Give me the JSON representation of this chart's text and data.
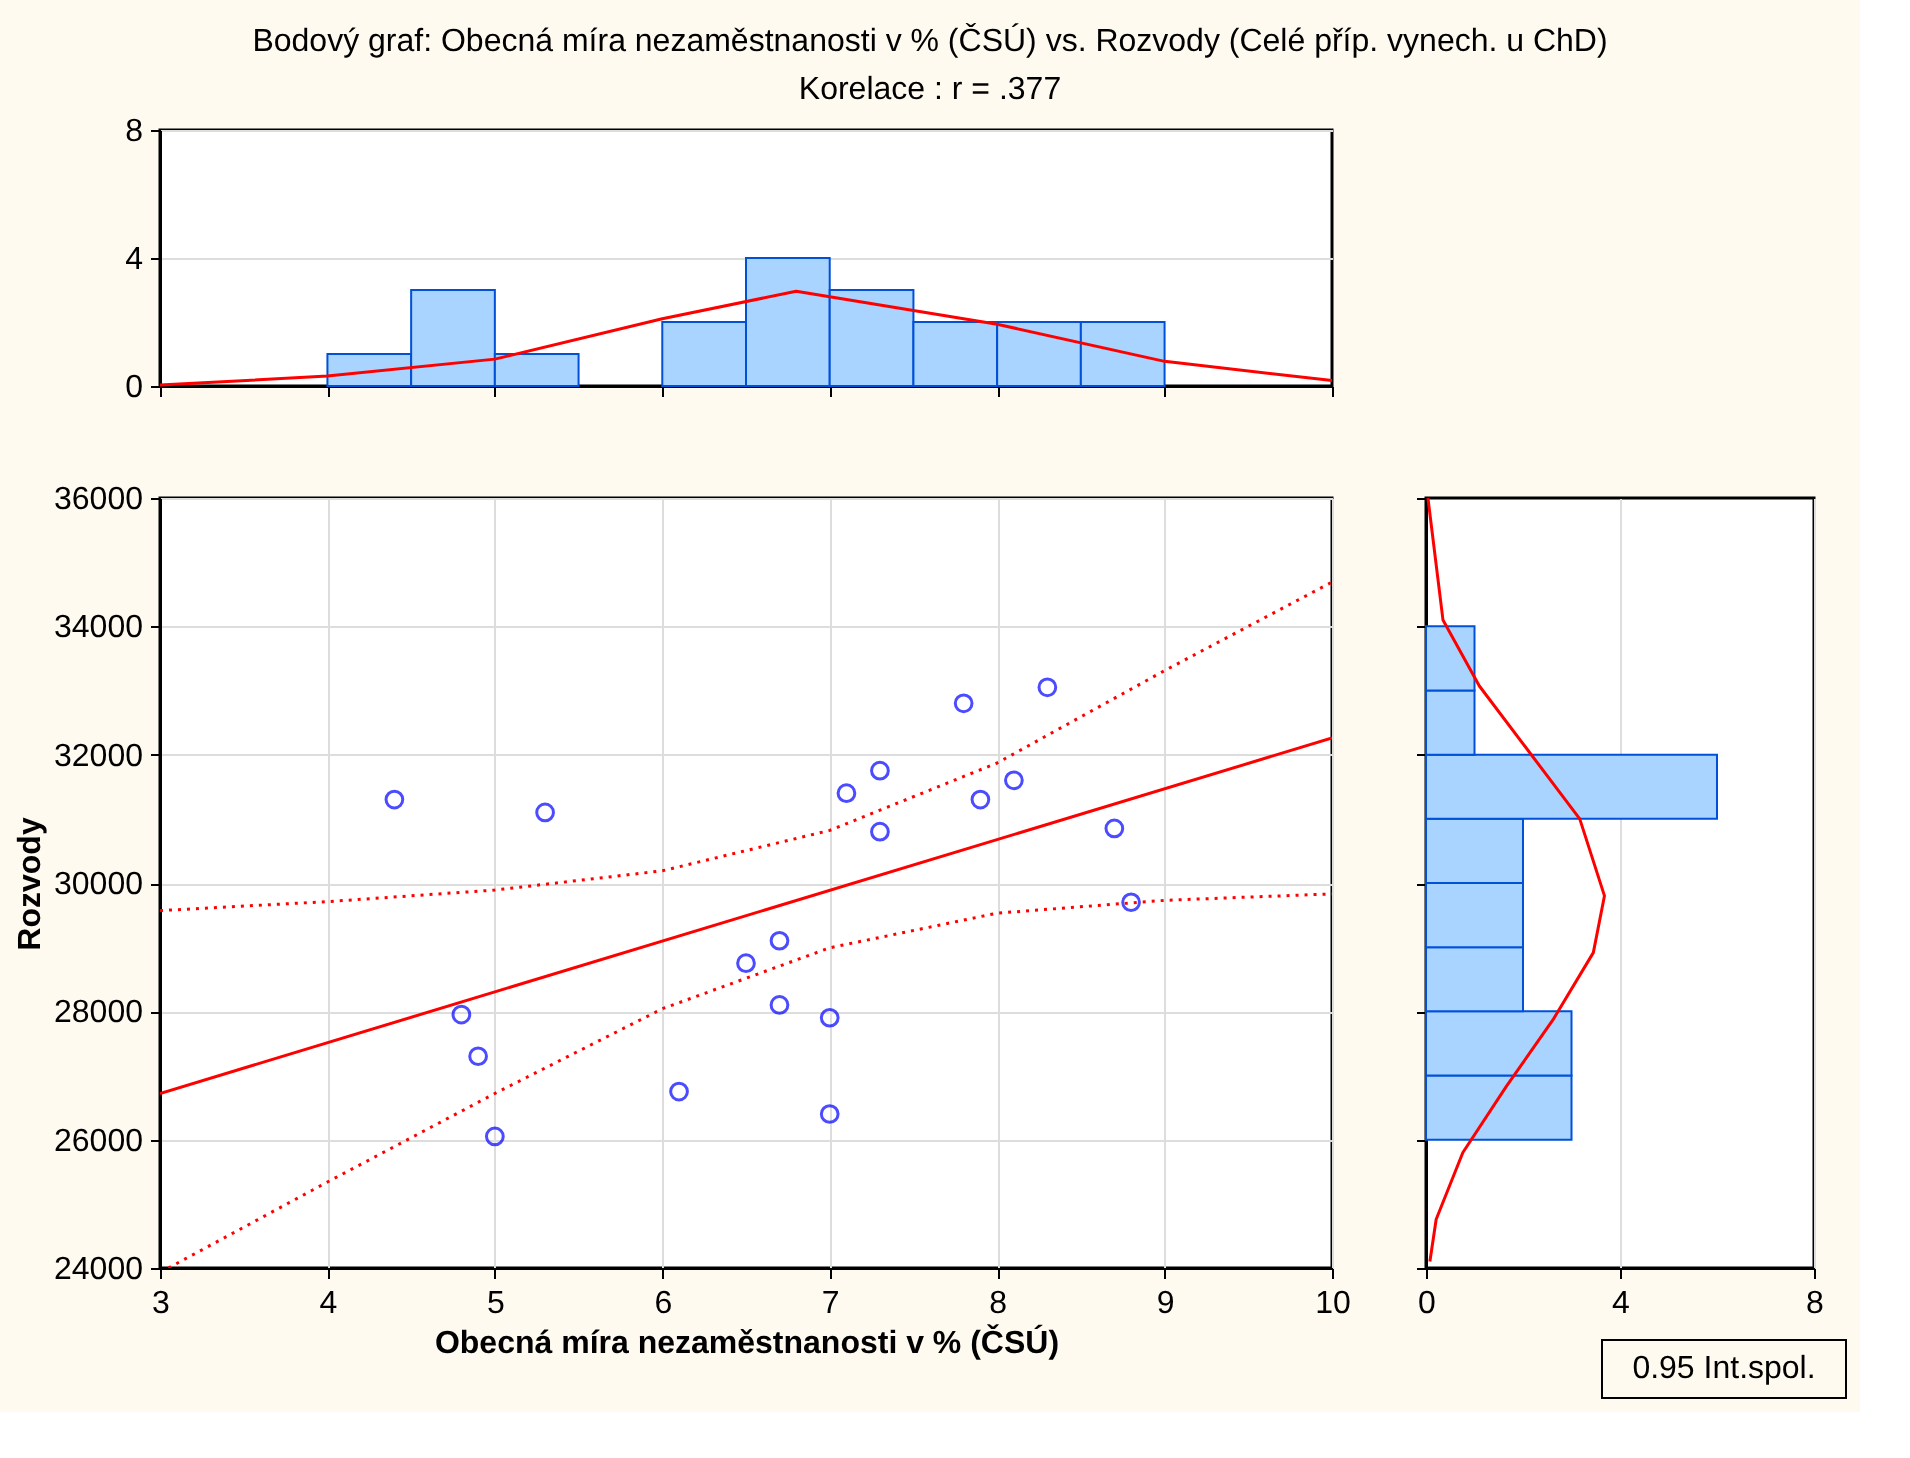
{
  "chart_data": [
    {
      "type": "histogram",
      "title": "Bodový graf: Obecná míra nezaměstnanosti v % (ČSÚ) vs. Rozvody (Celé příp. vynech. u ChD)",
      "subtitle": "Korelace :   r = .377",
      "bins": [
        3,
        3.5,
        4,
        4.5,
        5,
        5.5,
        6,
        6.5,
        7,
        7.5,
        8,
        8.5,
        9,
        9.5,
        10
      ],
      "series": [
        {
          "type": "histogram",
          "color": "#a8d4ff",
          "values": [
            0,
            0,
            1,
            3,
            1,
            0,
            2,
            4,
            3,
            2,
            2,
            2,
            0,
            0
          ]
        },
        {
          "type": "line",
          "color": "#ff0000",
          "line_style": "solid",
          "x": [
            3,
            4,
            5,
            6,
            6.8,
            8,
            9,
            10
          ],
          "values": [
            0.03,
            0.31,
            0.84,
            2.1,
            2.96,
            1.93,
            0.77,
            0.17
          ]
        }
      ],
      "xlim": [
        3,
        10
      ],
      "xticks": [
        3,
        4,
        5,
        6,
        7,
        8,
        9,
        10
      ],
      "ylim": [
        0,
        8
      ],
      "yticks": [
        0,
        4,
        8
      ],
      "grid": "y",
      "tick_labels": "y"
    },
    {
      "type": "scatter",
      "xlabel": "Obecná míra nezaměstnanosti v % (ČSÚ)",
      "ylabel": "Rozvody",
      "series": [
        {
          "type": "scatter",
          "color": "#0000ff",
          "marker": "circle",
          "x": [
            4.4,
            5.3,
            4.8,
            4.9,
            5.0,
            6.1,
            6.5,
            6.7,
            6.7,
            7.0,
            7.0,
            7.1,
            7.3,
            7.3,
            7.8,
            7.9,
            8.1,
            8.3,
            8.7,
            8.8
          ],
          "values": [
            31300,
            31100,
            27950,
            27300,
            26050,
            26750,
            28750,
            29100,
            28100,
            27900,
            26400,
            31400,
            31750,
            30800,
            32800,
            31300,
            31600,
            33050,
            30850,
            29700
          ]
        },
        {
          "type": "line",
          "color": "#ff0000",
          "line_style": "solid",
          "x": [
            3,
            10
          ],
          "values": [
            26720,
            32260
          ]
        },
        {
          "type": "line",
          "color": "#ff0000",
          "line_style": "dotted",
          "x": [
            3,
            4,
            5,
            6,
            7,
            8,
            9,
            10
          ],
          "values": [
            29570,
            29710,
            29890,
            30190,
            30820,
            31870,
            33310,
            34690
          ]
        },
        {
          "type": "line",
          "color": "#ff0000",
          "line_style": "dotted",
          "x": [
            3.05,
            4,
            5,
            6,
            7,
            8,
            9,
            10
          ],
          "values": [
            24000,
            25340,
            26720,
            28040,
            28990,
            29530,
            29730,
            29830
          ]
        }
      ],
      "xlim": [
        3,
        10
      ],
      "xticks": [
        3,
        4,
        5,
        6,
        7,
        8,
        9,
        10
      ],
      "ylim": [
        24000,
        36000
      ],
      "yticks": [
        24000,
        26000,
        28000,
        30000,
        32000,
        34000,
        36000
      ],
      "grid": true
    },
    {
      "type": "histogram",
      "orientation": "horizontal",
      "annotations": [
        "0.95 Int.spol."
      ],
      "bins": [
        24000,
        25000,
        26000,
        27000,
        28000,
        29000,
        30000,
        31000,
        32000,
        33000,
        34000,
        35000,
        36000
      ],
      "series": [
        {
          "type": "histogram",
          "color": "#a8d4ff",
          "values": [
            0,
            0,
            3,
            3,
            2,
            2,
            2,
            6,
            1,
            1,
            0,
            0
          ]
        },
        {
          "type": "line",
          "color": "#ff0000",
          "line_style": "solid",
          "x": [
            36000,
            34100,
            33070,
            32030,
            31000,
            29800,
            28915,
            27870,
            26835,
            25800,
            24760,
            24100
          ],
          "values": [
            0.04,
            0.35,
            1.1,
            2.14,
            3.17,
            3.68,
            3.45,
            2.62,
            1.66,
            0.76,
            0.21,
            0.08
          ]
        }
      ],
      "xlim": [
        0,
        8
      ],
      "xticks": [
        0,
        4,
        8
      ],
      "ylim": [
        24000,
        36000
      ],
      "yticks": [
        24000,
        26000,
        28000,
        30000,
        32000,
        34000,
        36000
      ],
      "grid": "x",
      "tick_labels": "x"
    }
  ]
}
